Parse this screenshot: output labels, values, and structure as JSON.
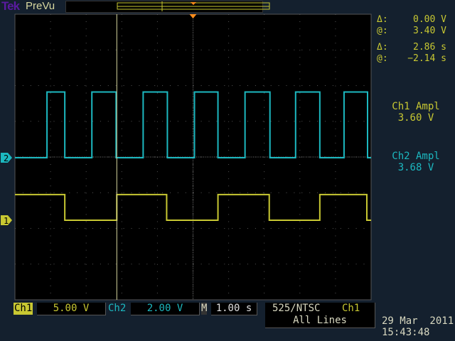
{
  "header": {
    "brand": "Tek",
    "mode": "PreVu"
  },
  "readouts": {
    "cursor1_delta_label": "Δ:",
    "cursor1_delta": "0.00 V",
    "cursor1_at_label": "@:",
    "cursor1_at": "3.40 V",
    "cursor2_delta_label": "Δ:",
    "cursor2_delta": "2.86 s",
    "cursor2_at_label": "@:",
    "cursor2_at": "−2.14 s",
    "meas1_label": "Ch1 Ampl",
    "meas1_value": "3.60 V",
    "meas2_label": "Ch2 Ampl",
    "meas2_value": "3.68 V"
  },
  "status": {
    "ch1_label": "Ch1",
    "ch1_scale": "5.00 V",
    "ch2_label": "Ch2",
    "ch2_scale": "2.00 V",
    "time_label": "M",
    "time_scale": "1.00 s",
    "trigger_mode": "525/NTSC",
    "trigger_source": "Ch1",
    "trigger_lines": "All Lines",
    "date": "29 Mar  2011",
    "time": "15:43:48"
  },
  "colors": {
    "ch1": "#c8c832",
    "ch2": "#1cb8c0",
    "trigger": "#ff8c1a",
    "background": "#14202e"
  },
  "chart_data": {
    "type": "line",
    "xlim": [
      -5,
      5
    ],
    "x_unit": "s",
    "x_divisions": 10,
    "y_divisions": 8,
    "grid": true,
    "cursor_time": -2.14,
    "series": [
      {
        "name": "Ch1",
        "marker": "1",
        "volts_per_div": 5.0,
        "low": 0,
        "high": 3.6,
        "start_level": "high",
        "transitions": [
          -3.6,
          -2.14,
          -0.74,
          0.7,
          2.14,
          3.56,
          4.88
        ]
      },
      {
        "name": "Ch2",
        "marker": "2",
        "volts_per_div": 2.0,
        "low": 0,
        "high": 3.68,
        "start_level": "low",
        "transitions": [
          -4.1,
          -3.6,
          -2.84,
          -2.16,
          -1.4,
          -0.72,
          0.04,
          0.7,
          1.46,
          2.16,
          2.88,
          3.56,
          4.24,
          4.9
        ]
      }
    ]
  }
}
